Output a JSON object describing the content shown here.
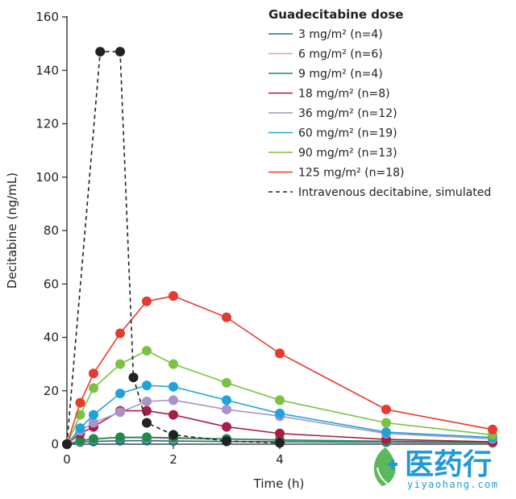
{
  "chart_data": {
    "type": "line",
    "xlabel": "Time (h)",
    "ylabel": "Decitabine (ng/mL)",
    "xlim": [
      0,
      8
    ],
    "ylim": [
      0,
      160
    ],
    "xticks": [
      0,
      2,
      4
    ],
    "yticks": [
      0,
      20,
      40,
      60,
      80,
      100,
      120,
      140,
      160
    ],
    "legend_title": "Guadecitabine dose",
    "legend_position": "top-right",
    "grid": false,
    "x": [
      0,
      0.25,
      0.5,
      1,
      1.5,
      2,
      3,
      4,
      6,
      8
    ],
    "series": [
      {
        "name": "3 mg/m² (n=4)",
        "color": "#1f6f8b",
        "values": [
          0,
          0.8,
          1,
          1.3,
          1.3,
          1.2,
          1.0,
          0.9,
          0.7,
          0.5
        ]
      },
      {
        "name": "6 mg/m² (n=6)",
        "color": "#d9a5a5",
        "values": [
          0,
          1.2,
          1.8,
          2.4,
          2.3,
          2.1,
          1.8,
          1.5,
          1.0,
          0.6
        ]
      },
      {
        "name": "9 mg/m² (n=4)",
        "color": "#1e8a4c",
        "values": [
          0,
          1.4,
          2,
          2.6,
          2.6,
          2.4,
          2.0,
          1.6,
          1.1,
          0.7
        ]
      },
      {
        "name": "18 mg/m² (n=8)",
        "color": "#a81d45",
        "values": [
          0,
          4,
          6.5,
          12.5,
          12.5,
          11,
          6.5,
          4,
          1.8,
          0.9
        ]
      },
      {
        "name": "36 mg/m² (n=12)",
        "color": "#a993c9",
        "values": [
          0,
          5,
          8,
          12,
          16,
          16.5,
          13,
          10.5,
          4,
          2
        ]
      },
      {
        "name": "60 mg/m² (n=19)",
        "color": "#1ea4d8",
        "values": [
          0,
          6,
          11,
          19,
          22,
          21.5,
          16.5,
          11.5,
          4.5,
          2.5
        ]
      },
      {
        "name": "90 mg/m² (n=13)",
        "color": "#7cc242",
        "values": [
          0,
          11,
          21,
          30,
          35,
          30,
          23,
          16.5,
          8,
          3.5
        ]
      },
      {
        "name": "125 mg/m² (n=18)",
        "color": "#e63b2e",
        "values": [
          0,
          15.5,
          26.5,
          41.5,
          53.5,
          55.5,
          47.5,
          34,
          13,
          5.5
        ]
      }
    ],
    "simulated": {
      "name": "Intravenous decitabine, simulated",
      "color": "#222222",
      "x": [
        0,
        0.625,
        1,
        1.25,
        1.5,
        2,
        3,
        4
      ],
      "values": [
        0,
        147,
        147,
        25,
        8,
        3.5,
        1.2,
        0.5
      ]
    }
  },
  "watermark": {
    "text": "医药行",
    "url": "yiyaohang.com",
    "color": "#1f9ad6"
  }
}
